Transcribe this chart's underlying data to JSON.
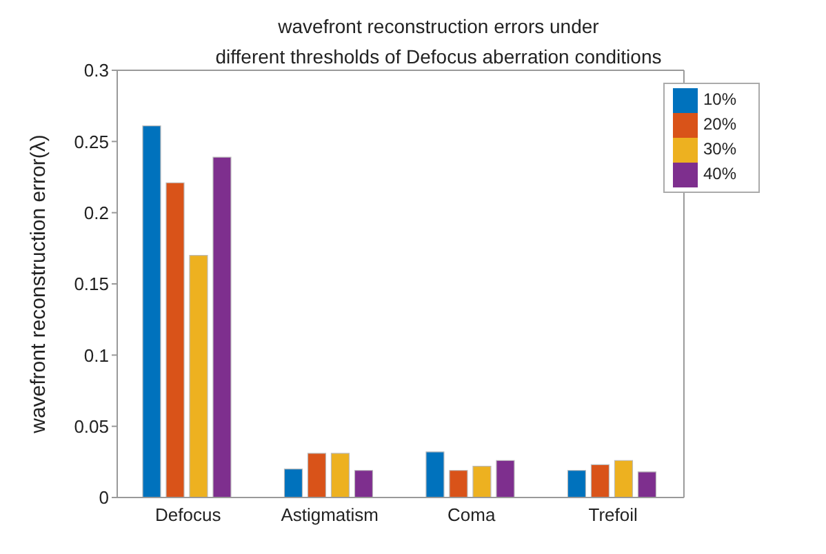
{
  "chart_data": {
    "type": "bar",
    "title": "wavefront reconstruction errors under\ndifferent thresholds of Defocus aberration conditions",
    "ylabel": "wavefront reconstruction error(λ)",
    "categories": [
      "Defocus",
      "Astigmatism",
      "Coma",
      "Trefoil"
    ],
    "series": [
      {
        "name": "10%",
        "color": "#0072bd",
        "values": [
          0.261,
          0.02,
          0.032,
          0.019
        ]
      },
      {
        "name": "20%",
        "color": "#d95319",
        "values": [
          0.221,
          0.031,
          0.019,
          0.023
        ]
      },
      {
        "name": "30%",
        "color": "#edb120",
        "values": [
          0.17,
          0.031,
          0.022,
          0.026
        ]
      },
      {
        "name": "40%",
        "color": "#7e2f8e",
        "values": [
          0.239,
          0.019,
          0.026,
          0.018
        ]
      }
    ],
    "ylim": [
      0,
      0.3
    ],
    "yticks": [
      0,
      0.05,
      0.1,
      0.15,
      0.2,
      0.25,
      0.3
    ],
    "grid": false,
    "legend": "top right"
  }
}
